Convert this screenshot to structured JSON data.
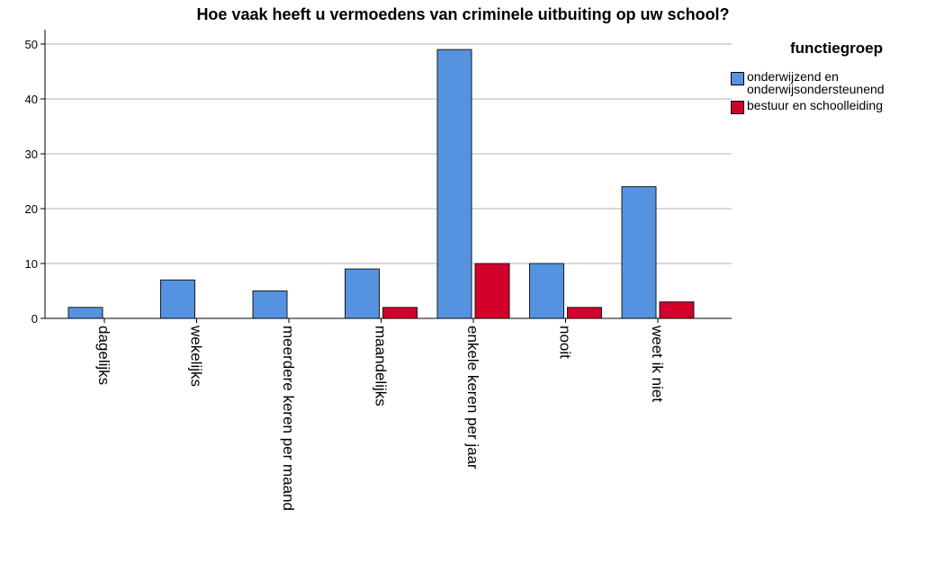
{
  "chart_data": {
    "type": "bar",
    "title": "Hoe vaak heeft u vermoedens van criminele uitbuiting op uw school?",
    "xlabel": "",
    "ylabel": "",
    "categories": [
      "dagelijks",
      "wekelijks",
      "meerdere keren per maand",
      "maandelijks",
      "enkele keren per jaar",
      "nooit",
      "weet ik niet"
    ],
    "series": [
      {
        "name": "onderwijzend en onderwijsondersteunend",
        "color": "#5592e0",
        "values": [
          2,
          7,
          5,
          9,
          49,
          10,
          24
        ]
      },
      {
        "name": "bestuur en schoolleiding",
        "color": "#d2002a",
        "values": [
          0,
          0,
          0,
          2,
          10,
          2,
          3
        ]
      }
    ],
    "ylim": [
      0,
      52
    ],
    "yticks": [
      0,
      10,
      20,
      30,
      40,
      50
    ],
    "grid": true,
    "legend": {
      "title": "functiegroep",
      "position": "top-right"
    }
  }
}
